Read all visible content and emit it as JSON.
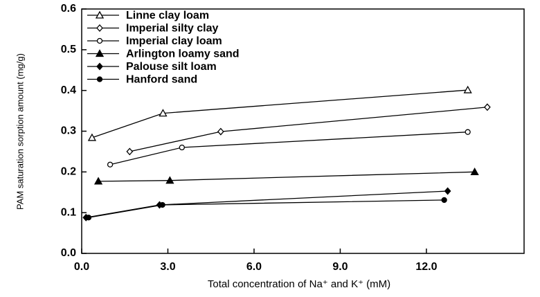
{
  "chart_data": {
    "type": "line",
    "xlabel": "Total concentration of Na⁺ and K⁺ (mM)",
    "ylabel": "PAM saturation sorption amount (mg/g)",
    "xlim": [
      0,
      15.4
    ],
    "ylim": [
      0,
      0.6
    ],
    "xticks": [
      {
        "value": 0,
        "label": "0.0"
      },
      {
        "value": 3,
        "label": "3.0"
      },
      {
        "value": 6,
        "label": "6.0"
      },
      {
        "value": 9,
        "label": "9.0"
      },
      {
        "value": 12,
        "label": "12.0"
      }
    ],
    "yticks": [
      {
        "value": 0,
        "label": "0.0"
      },
      0.1,
      0.2,
      0.3,
      0.4,
      0.5,
      0.6
    ],
    "legend": "upper left",
    "series": [
      {
        "name": "Linne clay loam",
        "color": "#000000",
        "marker": "triangle-open",
        "x": [
          0.36,
          2.83,
          13.44
        ],
        "values": [
          0.284,
          0.344,
          0.401
        ]
      },
      {
        "name": "Imperial silty clay",
        "color": "#000000",
        "marker": "diamond-open",
        "x": [
          1.67,
          4.84,
          14.12
        ],
        "values": [
          0.25,
          0.299,
          0.359
        ]
      },
      {
        "name": "Imperial clay loam",
        "color": "#000000",
        "marker": "circle-open",
        "x": [
          0.99,
          3.49,
          13.44
        ],
        "values": [
          0.218,
          0.26,
          0.298
        ]
      },
      {
        "name": "Arlington loamy sand",
        "color": "#000000",
        "marker": "triangle",
        "x": [
          0.58,
          3.07,
          13.68
        ],
        "values": [
          0.177,
          0.179,
          0.2
        ]
      },
      {
        "name": "Palouse silt loam",
        "color": "#000000",
        "marker": "diamond",
        "x": [
          0.15,
          2.71,
          12.74
        ],
        "values": [
          0.088,
          0.119,
          0.153
        ]
      },
      {
        "name": "Hanford sand",
        "color": "#000000",
        "marker": "circle",
        "x": [
          0.24,
          2.81,
          12.62
        ],
        "values": [
          0.088,
          0.119,
          0.131
        ]
      }
    ]
  }
}
